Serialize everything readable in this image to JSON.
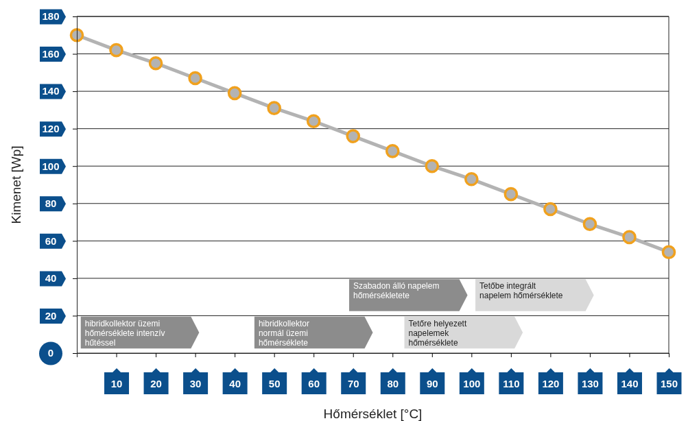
{
  "chart_data": {
    "type": "line",
    "xlabel": "Hőmérséklet [°C]",
    "ylabel": "Kimenet [Wp]",
    "x": [
      0,
      10,
      20,
      30,
      40,
      50,
      60,
      70,
      80,
      90,
      100,
      110,
      120,
      130,
      140,
      150
    ],
    "series": [
      {
        "color": "#b3b3b3",
        "values": [
          170,
          162,
          155,
          147,
          139,
          131,
          124,
          116,
          108,
          100,
          93,
          85,
          77,
          69,
          62,
          54
        ]
      }
    ],
    "xlim": [
      0,
      150
    ],
    "ylim": [
      0,
      180
    ],
    "xticks": [
      10,
      20,
      30,
      40,
      50,
      60,
      70,
      80,
      90,
      100,
      110,
      120,
      130,
      140,
      150
    ],
    "yticks": [
      0,
      20,
      40,
      60,
      80,
      100,
      120,
      140,
      160,
      180
    ],
    "grid": "y",
    "marker": "circle",
    "line_style": "solid",
    "annotations": [
      "hibridkollektor üzemi hőmérséklete intenzív hűtéssel",
      "hibridkollektor normál üzemi hőmérséklete",
      "Szabadon álló napelem hőmérsékletete",
      "Tetőre helyezett napelemek hőmérséklete",
      "Tetőbe integrált napelem hőmérséklete"
    ]
  }
}
